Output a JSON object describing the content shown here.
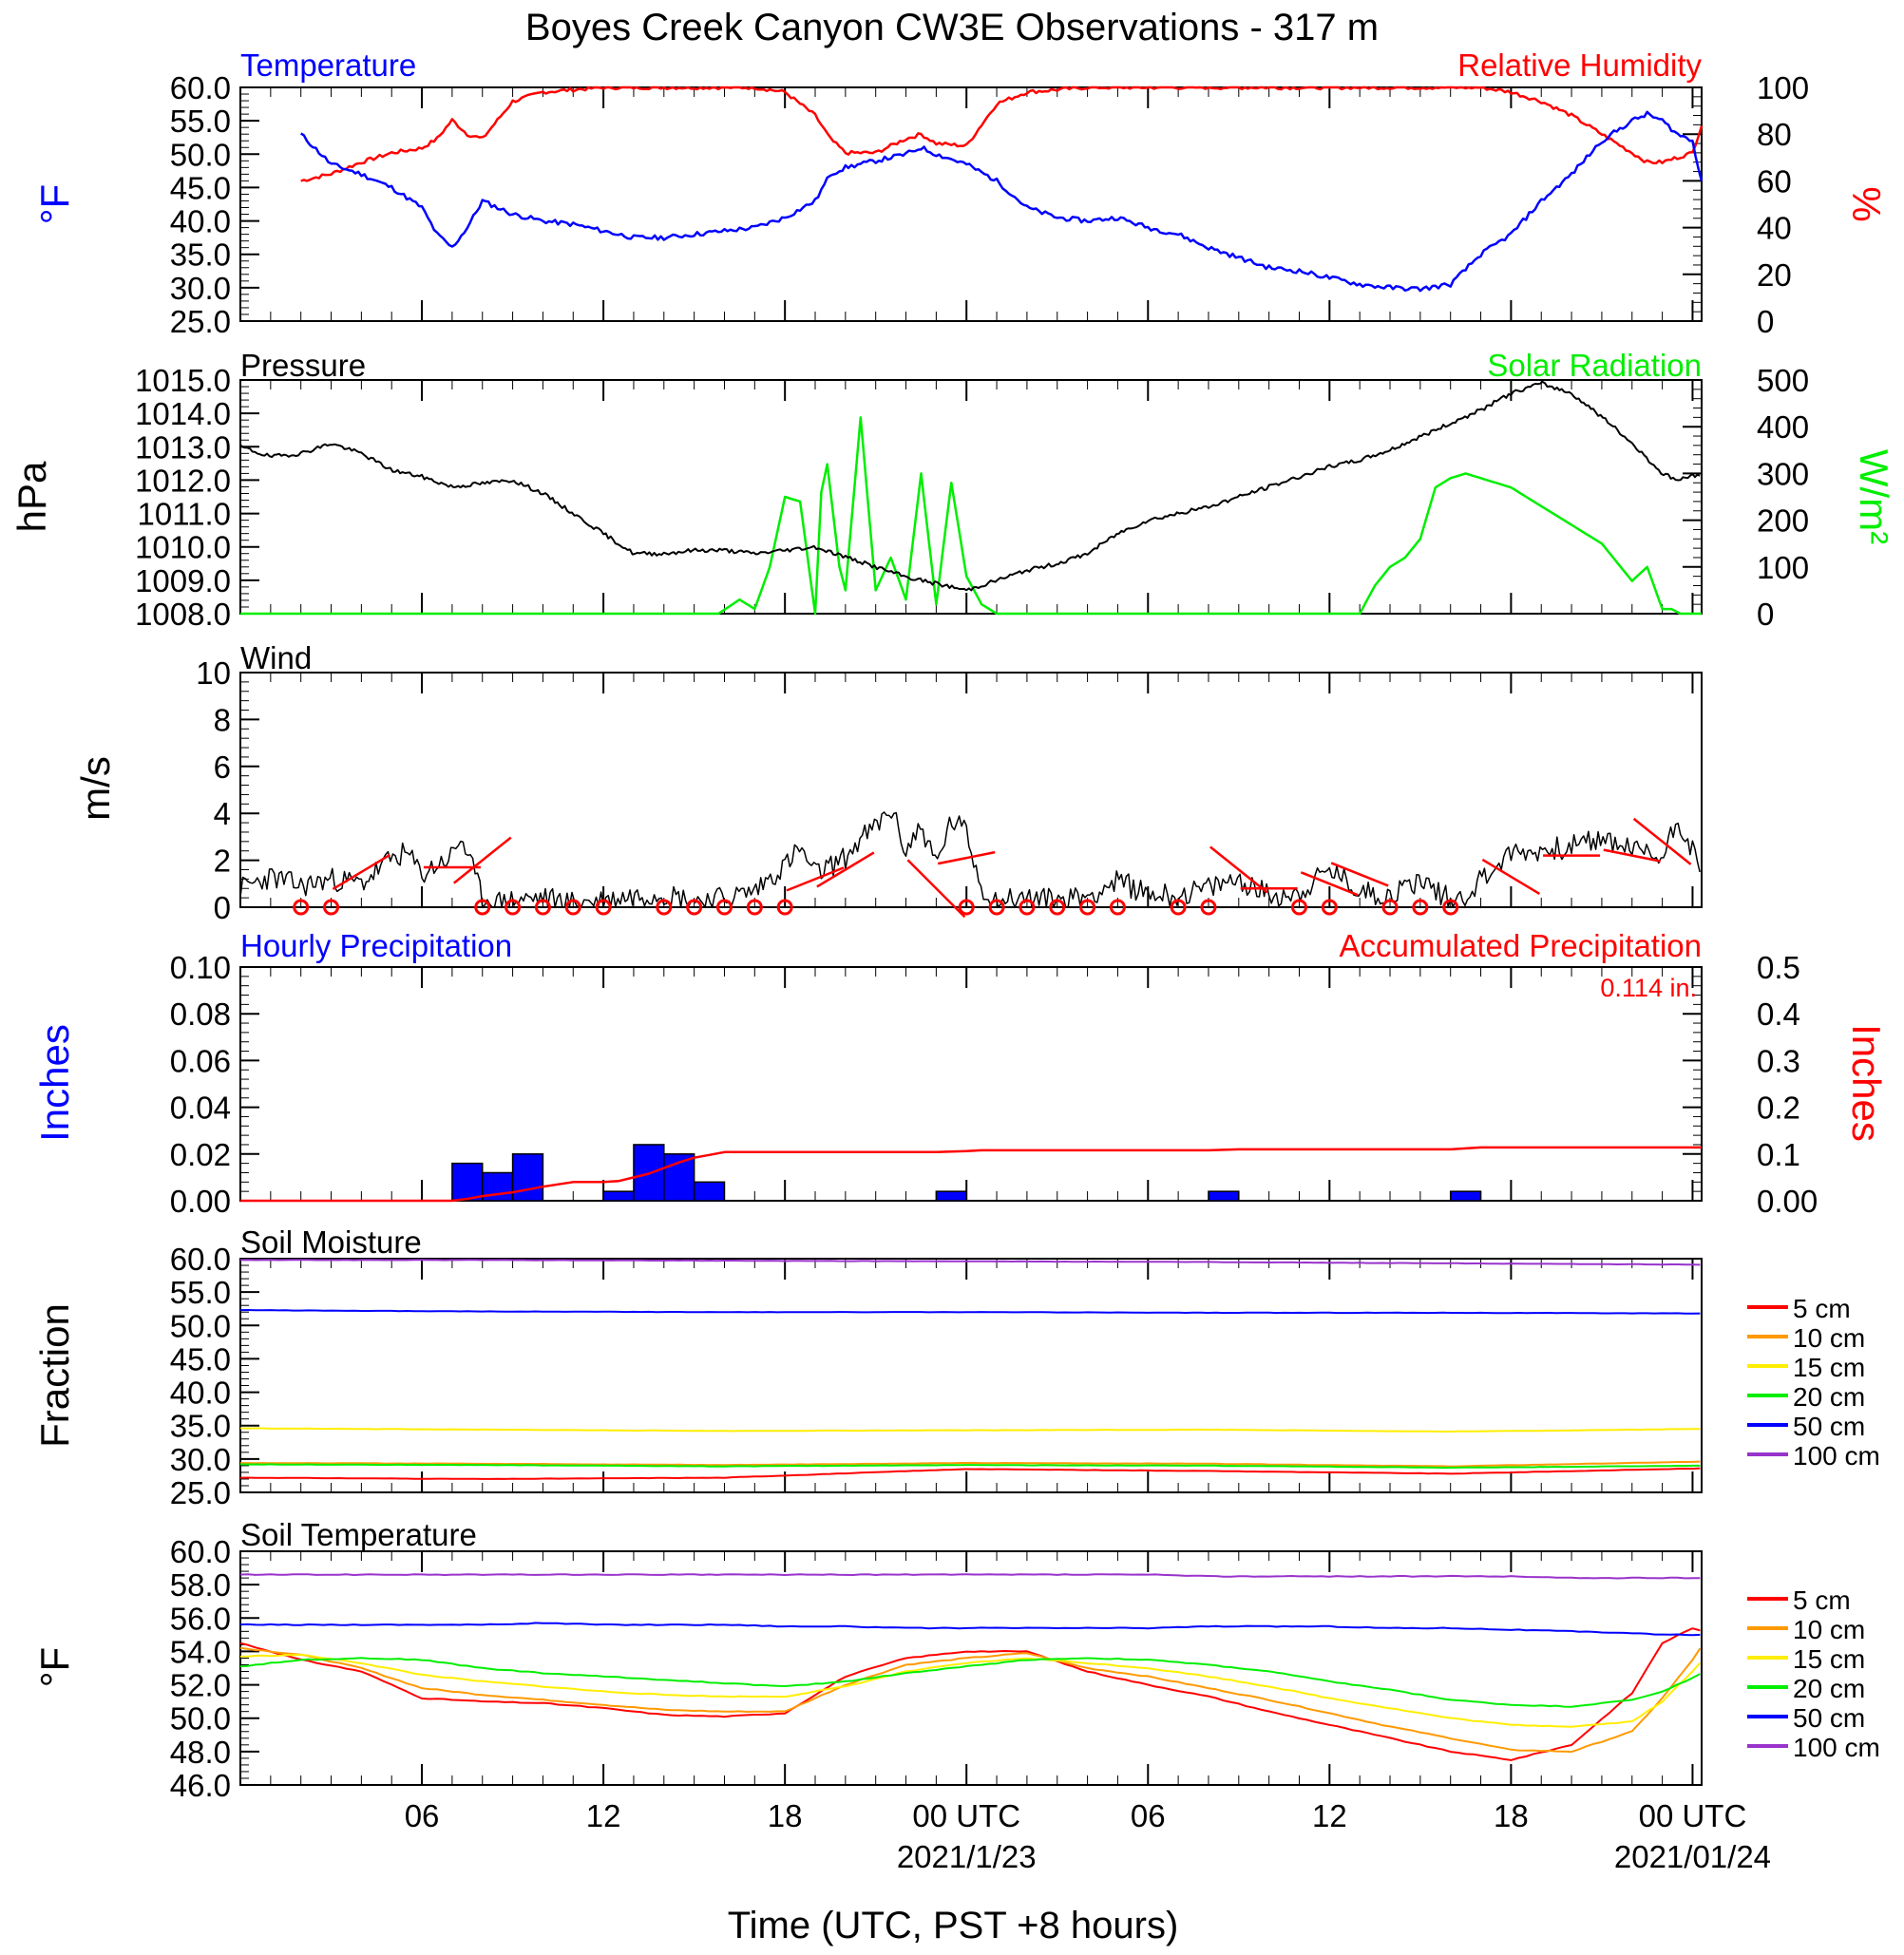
{
  "figure": {
    "title": "Boyes Creek Canyon CW3E Observations - 317 m",
    "xlabel": "Time (UTC, PST +8 hours)",
    "xticks": [
      "06",
      "12",
      "18",
      "00 UTC",
      "06",
      "12",
      "18",
      "00 UTC"
    ],
    "dates": [
      "2021/1/23",
      "2021/01/24"
    ],
    "colors": {
      "blue": "#0000ff",
      "red": "#ff0000",
      "green": "#00ee00",
      "black": "#000000",
      "orange": "#ff9900",
      "yellow": "#ffee00",
      "purple": "#9933cc"
    }
  },
  "chart_data": [
    {
      "type": "line",
      "title": "Temperature",
      "title_right": "Relative Humidity",
      "ylabel": "°F",
      "ylabel_right": "%",
      "ylim": [
        25,
        60
      ],
      "ylim_right": [
        0,
        100
      ],
      "yticks": [
        "60.0",
        "55.0",
        "50.0",
        "45.0",
        "40.0",
        "35.0",
        "30.0",
        "25.0"
      ],
      "yticks_right": [
        "100",
        "80",
        "60",
        "40",
        "20",
        "0"
      ],
      "x_hours_from_0000utc_2021_01_22": [
        2,
        3,
        4,
        5,
        6,
        6.5,
        7,
        7.5,
        8,
        9,
        10,
        11,
        12,
        13,
        14,
        15,
        16,
        17,
        18,
        19,
        19.5,
        20,
        21,
        22,
        22.5,
        23,
        24,
        25,
        26,
        27,
        28,
        29,
        30,
        31,
        32,
        33,
        34,
        35,
        36,
        37,
        38,
        39,
        40,
        41,
        42,
        43,
        44,
        45,
        46,
        46.5,
        47,
        47.5,
        48,
        48.3
      ],
      "series": [
        {
          "name": "Temperature",
          "axis": "left",
          "color": "#0000ff",
          "values": [
            53,
            48.5,
            47,
            45,
            42,
            38,
            36,
            39,
            43,
            41,
            40,
            39.5,
            38.5,
            37.5,
            37.5,
            38,
            38.5,
            39,
            40.5,
            43,
            47,
            48,
            49,
            50,
            51,
            50,
            48.5,
            46,
            42,
            40.5,
            40,
            40.5,
            39,
            38,
            36,
            34.5,
            33,
            32.5,
            31.5,
            30.5,
            30,
            29.8,
            30.5,
            35,
            38,
            43,
            47,
            52,
            55,
            56,
            55,
            53,
            52,
            46
          ]
        },
        {
          "name": "Relative Humidity",
          "axis": "right",
          "color": "#ff0000",
          "values": [
            60,
            63,
            68,
            72,
            74,
            78,
            86,
            80,
            78,
            94,
            98,
            99,
            100,
            100,
            100,
            100,
            100,
            100,
            98,
            88,
            78,
            72,
            72,
            78,
            80,
            76,
            75,
            93,
            98,
            99,
            100,
            100,
            100,
            100,
            100,
            100,
            100,
            100,
            100,
            100,
            100,
            100,
            100,
            100,
            98,
            94,
            88,
            80,
            72,
            68,
            68,
            70,
            72,
            84
          ]
        }
      ]
    },
    {
      "type": "line",
      "title": "Pressure",
      "title_right": "Solar Radiation",
      "ylabel": "hPa",
      "ylabel_right": "W/m²",
      "ylim": [
        1008,
        1015
      ],
      "ylim_right": [
        0,
        500
      ],
      "yticks": [
        "1015.0",
        "1014.0",
        "1013.0",
        "1012.0",
        "1011.0",
        "1010.0",
        "1009.0",
        "1008.0"
      ],
      "yticks_right": [
        "500",
        "400",
        "300",
        "200",
        "100",
        "0"
      ],
      "pressure": {
        "name": "Pressure",
        "color": "#000000",
        "x": [
          0,
          1,
          2,
          3,
          4,
          5,
          6,
          7,
          8,
          9,
          10,
          11,
          12,
          13,
          14,
          15,
          16,
          17,
          18,
          19,
          20,
          21,
          22,
          23,
          24,
          25,
          26,
          27,
          28,
          29,
          30,
          31,
          32,
          33,
          34,
          35,
          36,
          37,
          38,
          39,
          40,
          41,
          42,
          43,
          44,
          45,
          46,
          47,
          47.5,
          48.3
        ],
        "values": [
          1013,
          1012.7,
          1012.8,
          1013.1,
          1012.8,
          1012.3,
          1012.1,
          1011.8,
          1011.9,
          1012,
          1011.6,
          1011,
          1010.4,
          1009.8,
          1009.8,
          1009.9,
          1009.9,
          1009.8,
          1009.9,
          1010,
          1009.7,
          1009.4,
          1009.1,
          1008.9,
          1008.7,
          1009,
          1009.3,
          1009.5,
          1009.8,
          1010.4,
          1010.8,
          1011,
          1011.2,
          1011.5,
          1011.8,
          1012.1,
          1012.4,
          1012.6,
          1012.9,
          1013.3,
          1013.7,
          1014.1,
          1014.6,
          1014.9,
          1014.6,
          1013.9,
          1013.1,
          1012.2,
          1012,
          1012.2
        ]
      },
      "solar": {
        "name": "Solar Radiation",
        "color": "#00ee00",
        "x": [
          0,
          6,
          14,
          15,
          15.8,
          16.5,
          17,
          17.5,
          18,
          18.5,
          19,
          19.2,
          19.4,
          19.8,
          20,
          20.5,
          21,
          21.5,
          22,
          22.5,
          23,
          23.5,
          24,
          24.5,
          25,
          26,
          30,
          34,
          36,
          37,
          37.5,
          38,
          38.5,
          39,
          39.5,
          40,
          40.5,
          41,
          42,
          44,
          45,
          46,
          46.5,
          47,
          47.3,
          47.6,
          48,
          48.3
        ],
        "values": [
          0,
          0,
          0,
          0,
          0,
          30,
          10,
          100,
          250,
          240,
          0,
          260,
          320,
          100,
          50,
          420,
          50,
          120,
          30,
          300,
          20,
          280,
          80,
          20,
          0,
          0,
          0,
          0,
          0,
          0,
          60,
          100,
          120,
          160,
          270,
          290,
          300,
          290,
          270,
          190,
          150,
          70,
          100,
          10,
          10,
          0,
          0,
          0
        ]
      }
    },
    {
      "type": "line",
      "title": "Wind",
      "ylabel": "m/s",
      "ylim": [
        0,
        10
      ],
      "yticks": [
        "10",
        "8",
        "6",
        "4",
        "2",
        "0"
      ],
      "speed_color": "#000000",
      "speed": {
        "x": [
          0,
          1,
          2,
          3,
          4,
          5,
          5.5,
          6,
          7,
          7.3,
          8,
          8.5,
          9,
          10,
          11,
          12,
          13,
          14,
          15,
          16,
          17,
          18,
          18.5,
          19,
          20,
          20.5,
          21,
          21.5,
          22,
          22.5,
          23,
          23.5,
          24,
          24.5,
          25,
          26,
          27,
          28,
          29,
          30,
          31,
          32,
          33,
          34,
          35,
          36,
          37,
          38,
          39,
          40,
          40.5,
          41,
          42,
          43,
          44,
          45,
          46,
          47,
          47.5,
          48,
          48.3
        ],
        "values": [
          0.8,
          1.3,
          0.9,
          1.2,
          1.0,
          2.1,
          2.3,
          1.4,
          2.2,
          3.0,
          0.4,
          0.2,
          0.3,
          0.4,
          0.2,
          0.3,
          0.5,
          0.6,
          0.3,
          0.4,
          0.7,
          1.8,
          2.5,
          1.4,
          2.1,
          2.9,
          3.4,
          4.2,
          2.4,
          3.5,
          1.8,
          3.7,
          3.2,
          0.8,
          0.3,
          0.4,
          0.3,
          0.5,
          1.1,
          0.6,
          0.5,
          0.8,
          1.2,
          0.5,
          0.6,
          1.6,
          0.7,
          0.5,
          1.2,
          0.3,
          0.5,
          1.2,
          2.3,
          2.4,
          2.6,
          2.9,
          2.5,
          2.1,
          3.8,
          2.5,
          1.0
        ]
      },
      "barb_color": "#ff0000",
      "calm_hours": [
        2,
        3,
        8,
        9,
        10,
        11,
        12,
        14,
        15,
        16,
        17,
        18,
        24,
        25,
        26,
        27,
        28,
        29,
        31,
        32,
        35,
        36,
        38,
        39,
        40
      ]
    },
    {
      "type": "bar",
      "title": "Hourly Precipitation",
      "title_right": "Accumulated Precipitation",
      "total_label": "0.114 in.",
      "ylabel": "Inches",
      "ylabel_right": "Inches",
      "ylim": [
        0,
        0.1
      ],
      "ylim_right": [
        0,
        0.5
      ],
      "yticks": [
        "0.10",
        "0.08",
        "0.06",
        "0.04",
        "0.02",
        "0.00"
      ],
      "yticks_right": [
        "0.5",
        "0.4",
        "0.3",
        "0.2",
        "0.1",
        "0.00"
      ],
      "hourly": {
        "name": "Hourly Precipitation",
        "color": "#0000ff",
        "hour_start": [
          7,
          8,
          9,
          12,
          13,
          14,
          15,
          23,
          32,
          40
        ],
        "values": [
          0.016,
          0.012,
          0.02,
          0.004,
          0.024,
          0.02,
          0.008,
          0.004,
          0.004,
          0.004
        ]
      },
      "accumulated": {
        "name": "Accumulated Precipitation",
        "color": "#ff0000",
        "x": [
          0,
          7,
          7.5,
          8,
          9,
          9.5,
          10,
          11,
          12,
          12.5,
          13,
          13.5,
          14,
          14.5,
          15,
          15.5,
          16,
          23,
          24,
          24.5,
          32,
          33,
          40,
          41,
          48.3
        ],
        "values": [
          0,
          0,
          0.004,
          0.01,
          0.018,
          0.024,
          0.03,
          0.04,
          0.04,
          0.042,
          0.05,
          0.058,
          0.07,
          0.082,
          0.092,
          0.098,
          0.104,
          0.104,
          0.106,
          0.108,
          0.108,
          0.11,
          0.11,
          0.114,
          0.114
        ]
      }
    },
    {
      "type": "line",
      "title": "Soil Moisture",
      "ylabel": "Fraction",
      "ylim": [
        25,
        60
      ],
      "yticks": [
        "60.0",
        "55.0",
        "50.0",
        "45.0",
        "40.0",
        "35.0",
        "30.0",
        "25.0"
      ],
      "x": [
        0,
        8,
        16,
        24,
        32,
        40,
        48.3
      ],
      "legend": [
        "5 cm",
        "10 cm",
        "15 cm",
        "20 cm",
        "50 cm",
        "100 cm"
      ],
      "series": [
        {
          "name": "5 cm",
          "color": "#ff0000",
          "values": [
            27.2,
            27.0,
            27.2,
            28.5,
            28.2,
            27.8,
            28.6
          ]
        },
        {
          "name": "10 cm",
          "color": "#ff9900",
          "values": [
            29.4,
            29.3,
            29.1,
            29.4,
            29.3,
            28.9,
            29.6
          ]
        },
        {
          "name": "15 cm",
          "color": "#ffee00",
          "values": [
            34.6,
            34.4,
            34.2,
            34.3,
            34.4,
            34.1,
            34.5
          ]
        },
        {
          "name": "20 cm",
          "color": "#00ee00",
          "values": [
            29.2,
            29.1,
            28.9,
            29.1,
            29.0,
            28.7,
            29.0
          ]
        },
        {
          "name": "50 cm",
          "color": "#0000ff",
          "values": [
            52.3,
            52.1,
            52.0,
            52.0,
            51.9,
            51.9,
            51.8
          ]
        },
        {
          "name": "100 cm",
          "color": "#9933cc",
          "values": [
            59.8,
            59.8,
            59.7,
            59.6,
            59.5,
            59.3,
            59.1
          ]
        }
      ]
    },
    {
      "type": "line",
      "title": "Soil Temperature",
      "ylabel": "°F",
      "ylim": [
        46,
        60
      ],
      "yticks": [
        "60.0",
        "58.0",
        "56.0",
        "54.0",
        "52.0",
        "50.0",
        "48.0",
        "46.0"
      ],
      "x": [
        0,
        2,
        4,
        6,
        8,
        10,
        12,
        14,
        16,
        18,
        20,
        22,
        24,
        26,
        28,
        30,
        32,
        34,
        36,
        38,
        40,
        42,
        44,
        46,
        47,
        48,
        48.3
      ],
      "legend": [
        "5 cm",
        "10 cm",
        "15 cm",
        "20 cm",
        "50 cm",
        "100 cm"
      ],
      "series": [
        {
          "name": "5 cm",
          "color": "#ff0000",
          "values": [
            54.5,
            53.5,
            52.8,
            51.2,
            51.0,
            50.9,
            50.6,
            50.2,
            50.1,
            50.3,
            52.5,
            53.6,
            54.0,
            54.0,
            52.8,
            52.0,
            51.3,
            50.4,
            49.6,
            48.8,
            48.0,
            47.5,
            48.4,
            51.5,
            54.5,
            55.4,
            55.2
          ]
        },
        {
          "name": "10 cm",
          "color": "#ff9900",
          "values": [
            54.2,
            53.8,
            53.0,
            51.8,
            51.4,
            51.1,
            50.8,
            50.5,
            50.4,
            50.4,
            52.0,
            53.2,
            53.6,
            53.9,
            53.0,
            52.5,
            51.8,
            51.1,
            50.3,
            49.5,
            48.8,
            48.1,
            48.0,
            49.2,
            51.2,
            53.5,
            54.3
          ]
        },
        {
          "name": "15 cm",
          "color": "#ffee00",
          "values": [
            53.7,
            53.8,
            53.3,
            52.6,
            52.2,
            51.9,
            51.6,
            51.4,
            51.3,
            51.3,
            51.9,
            52.8,
            53.3,
            53.6,
            53.3,
            53.0,
            52.5,
            51.9,
            51.2,
            50.6,
            50.0,
            49.6,
            49.5,
            49.8,
            51.0,
            52.8,
            53.4
          ]
        },
        {
          "name": "20 cm",
          "color": "#00ee00",
          "values": [
            53.1,
            53.5,
            53.6,
            53.5,
            53.0,
            52.7,
            52.5,
            52.3,
            52.1,
            51.9,
            52.2,
            52.7,
            53.1,
            53.5,
            53.6,
            53.5,
            53.2,
            52.8,
            52.2,
            51.7,
            51.1,
            50.8,
            50.7,
            51.1,
            51.6,
            52.4,
            52.7
          ]
        },
        {
          "name": "50 cm",
          "color": "#0000ff",
          "values": [
            55.6,
            55.6,
            55.6,
            55.6,
            55.6,
            55.7,
            55.6,
            55.6,
            55.6,
            55.5,
            55.5,
            55.4,
            55.4,
            55.4,
            55.4,
            55.4,
            55.5,
            55.5,
            55.5,
            55.4,
            55.4,
            55.3,
            55.2,
            55.1,
            55.0,
            55.0,
            55.0
          ]
        },
        {
          "name": "100 cm",
          "color": "#9933cc",
          "values": [
            58.6,
            58.6,
            58.6,
            58.6,
            58.6,
            58.6,
            58.6,
            58.6,
            58.6,
            58.6,
            58.6,
            58.6,
            58.6,
            58.6,
            58.6,
            58.6,
            58.5,
            58.5,
            58.5,
            58.5,
            58.5,
            58.5,
            58.4,
            58.4,
            58.4,
            58.4,
            58.4
          ]
        }
      ]
    }
  ]
}
